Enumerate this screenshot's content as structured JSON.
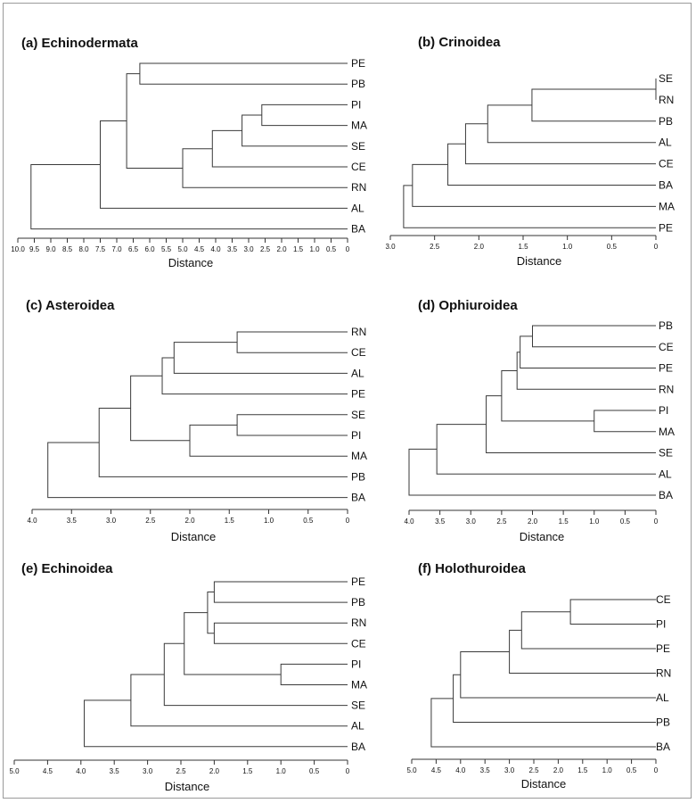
{
  "panels": [
    {
      "id": "a",
      "title": "(a) Echinodermata",
      "axis_label": "Distance",
      "tick_labels": [
        "10.0",
        "9.5",
        "9.0",
        "8.5",
        "8.0",
        "7.5",
        "7.0",
        "6.5",
        "6.0",
        "5.5",
        "5.0",
        "4.5",
        "4.0",
        "3.5",
        "3.0",
        "2.5",
        "2.0",
        "1.5",
        "1.0",
        "0.5",
        "0"
      ],
      "leaves": [
        "PE",
        "PB",
        "PI",
        "MA",
        "SE",
        "CE",
        "RN",
        "AL",
        "BA"
      ],
      "merges": [
        {
          "a": "PE",
          "b": "PB",
          "h": 6.3
        },
        {
          "a": "PI",
          "b": "MA",
          "h": 2.6
        },
        {
          "a": "PI+MA",
          "b": "SE",
          "h": 3.2
        },
        {
          "a": "PI+MA+SE",
          "b": "CE",
          "h": 4.1
        },
        {
          "a": "PI+MA+SE+CE",
          "b": "RN",
          "h": 5.0
        },
        {
          "a": "PE+PB",
          "b": "PI+MA+SE+CE+RN",
          "h": 6.7
        },
        {
          "a": "PE+PB+PI+MA+SE+CE+RN",
          "b": "AL",
          "h": 7.5
        },
        {
          "a": "PE+PB+PI+MA+SE+CE+RN+AL",
          "b": "BA",
          "h": 9.6
        }
      ]
    },
    {
      "id": "b",
      "title": "(b) Crinoidea",
      "axis_label": "Distance",
      "tick_labels": [
        "3.0",
        "2.5",
        "2.0",
        "1.5",
        "1.0",
        "0.5",
        "0"
      ],
      "leaves": [
        "SE",
        "RN",
        "PB",
        "AL",
        "CE",
        "BA",
        "MA",
        "PE"
      ],
      "merges": [
        {
          "a": "SE",
          "b": "RN",
          "h": 0.0
        },
        {
          "a": "SE+RN",
          "b": "PB",
          "h": 1.4
        },
        {
          "a": "SE+RN+PB",
          "b": "AL",
          "h": 1.9
        },
        {
          "a": "SE+RN+PB+AL",
          "b": "CE",
          "h": 2.15
        },
        {
          "a": "SE+RN+PB+AL+CE",
          "b": "BA",
          "h": 2.35
        },
        {
          "a": "SE+RN+PB+AL+CE+BA",
          "b": "MA",
          "h": 2.75
        },
        {
          "a": "SE+RN+PB+AL+CE+BA+MA",
          "b": "PE",
          "h": 2.85
        }
      ]
    },
    {
      "id": "c",
      "title": "(c) Asteroidea",
      "axis_label": "Distance",
      "tick_labels": [
        "4.0",
        "3.5",
        "3.0",
        "2.5",
        "2.0",
        "1.5",
        "1.0",
        "0.5",
        "0"
      ],
      "leaves": [
        "RN",
        "CE",
        "AL",
        "PE",
        "SE",
        "PI",
        "MA",
        "PB",
        "BA"
      ],
      "merges": [
        {
          "a": "RN",
          "b": "CE",
          "h": 1.4
        },
        {
          "a": "RN+CE",
          "b": "AL",
          "h": 2.2
        },
        {
          "a": "RN+CE+AL",
          "b": "PE",
          "h": 2.35
        },
        {
          "a": "SE",
          "b": "PI",
          "h": 1.4
        },
        {
          "a": "SE+PI",
          "b": "MA",
          "h": 2.0
        },
        {
          "a": "RN+CE+AL+PE",
          "b": "SE+PI+MA",
          "h": 2.75
        },
        {
          "a": "RN+CE+AL+PE+SE+PI+MA",
          "b": "PB",
          "h": 3.15
        },
        {
          "a": "RN+CE+AL+PE+SE+PI+MA+PB",
          "b": "BA",
          "h": 3.8
        }
      ]
    },
    {
      "id": "d",
      "title": "(d) Ophiuroidea",
      "axis_label": "Distance",
      "tick_labels": [
        "4.0",
        "3.5",
        "3.0",
        "2.5",
        "2.0",
        "1.5",
        "1.0",
        "0.5",
        "0"
      ],
      "leaves": [
        "PB",
        "CE",
        "PE",
        "RN",
        "PI",
        "MA",
        "SE",
        "AL",
        "BA"
      ],
      "merges": [
        {
          "a": "PB",
          "b": "CE",
          "h": 2.0
        },
        {
          "a": "PB+CE",
          "b": "PE",
          "h": 2.2
        },
        {
          "a": "PB+CE+PE",
          "b": "RN",
          "h": 2.25
        },
        {
          "a": "PI",
          "b": "MA",
          "h": 1.0
        },
        {
          "a": "PB+CE+PE+RN",
          "b": "PI+MA",
          "h": 2.5
        },
        {
          "a": "PB+CE+PE+RN+PI+MA",
          "b": "SE",
          "h": 2.75
        },
        {
          "a": "PB+CE+PE+RN+PI+MA+SE",
          "b": "AL",
          "h": 3.55
        },
        {
          "a": "PB+CE+PE+RN+PI+MA+SE+AL",
          "b": "BA",
          "h": 4.0
        }
      ]
    },
    {
      "id": "e",
      "title": "(e) Echinoidea",
      "axis_label": "Distance",
      "tick_labels": [
        "5.0",
        "4.5",
        "4.0",
        "3.5",
        "3.0",
        "2.5",
        "2.0",
        "1.5",
        "1.0",
        "0.5",
        "0"
      ],
      "leaves": [
        "PE",
        "PB",
        "RN",
        "CE",
        "PI",
        "MA",
        "SE",
        "AL",
        "BA"
      ],
      "merges": [
        {
          "a": "PE",
          "b": "PB",
          "h": 2.0
        },
        {
          "a": "RN",
          "b": "CE",
          "h": 2.0
        },
        {
          "a": "PE+PB",
          "b": "RN+CE",
          "h": 2.1
        },
        {
          "a": "PI",
          "b": "MA",
          "h": 1.0
        },
        {
          "a": "PE+PB+RN+CE",
          "b": "PI+MA",
          "h": 2.45
        },
        {
          "a": "PE+PB+RN+CE+PI+MA",
          "b": "SE",
          "h": 2.75
        },
        {
          "a": "PE+PB+RN+CE+PI+MA+SE",
          "b": "AL",
          "h": 3.25
        },
        {
          "a": "PE+PB+RN+CE+PI+MA+SE+AL",
          "b": "BA",
          "h": 3.95
        }
      ]
    },
    {
      "id": "f",
      "title": "(f) Holothuroidea",
      "axis_label": "Distance",
      "tick_labels": [
        "5.0",
        "4.5",
        "4.0",
        "3.5",
        "3.0",
        "2.5",
        "2.0",
        "1.5",
        "1.0",
        "0.5",
        "0"
      ],
      "leaves": [
        "CE",
        "PI",
        "PE",
        "RN",
        "AL",
        "PB",
        "BA"
      ],
      "merges": [
        {
          "a": "CE",
          "b": "PI",
          "h": 1.75
        },
        {
          "a": "CE+PI",
          "b": "PE",
          "h": 2.75
        },
        {
          "a": "CE+PI+PE",
          "b": "RN",
          "h": 3.0
        },
        {
          "a": "CE+PI+PE+RN",
          "b": "AL",
          "h": 4.0
        },
        {
          "a": "CE+PI+PE+RN+AL",
          "b": "PB",
          "h": 4.15
        },
        {
          "a": "CE+PI+PE+RN+AL+PB",
          "b": "BA",
          "h": 4.6
        }
      ]
    }
  ]
}
